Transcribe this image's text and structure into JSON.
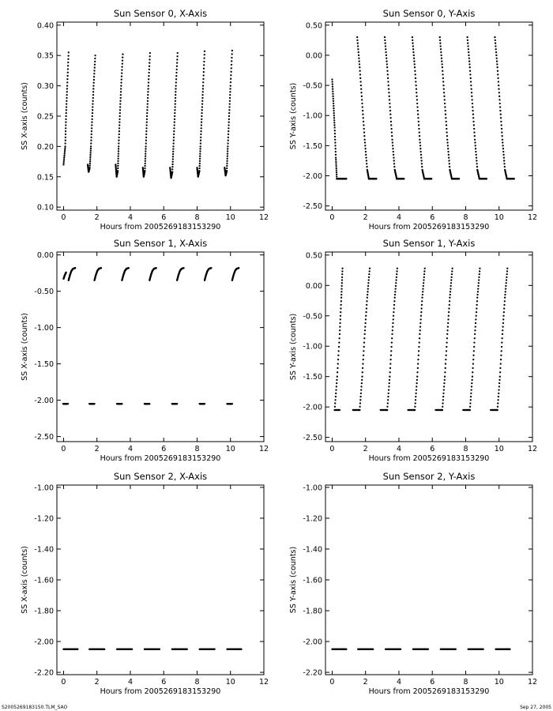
{
  "footer": {
    "file_label": "S2005269183150.TLM_SAO",
    "date_label": "Sep 27, 2005"
  },
  "chart_data": [
    {
      "type": "scatter",
      "title": "Sun Sensor 0, X-Axis",
      "xlabel": "Hours from 2005269183153290",
      "ylabel": "SS X-axis (counts)",
      "xlim": [
        -0.4,
        12
      ],
      "ylim": [
        0.095,
        0.405
      ],
      "xticks": [
        0,
        2,
        4,
        6,
        8,
        10,
        12
      ],
      "yticks": [
        0.1,
        0.15,
        0.2,
        0.25,
        0.3,
        0.35,
        0.4
      ],
      "ytick_labels": [
        "0.10",
        "0.15",
        "0.20",
        "0.25",
        "0.30",
        "0.35",
        "0.40"
      ],
      "segments": [
        {
          "x": [
            0.0,
            0.1,
            0.15,
            0.22,
            0.3
          ],
          "y": [
            0.17,
            0.2,
            0.25,
            0.3,
            0.355
          ]
        },
        {
          "x": [
            1.45,
            1.5,
            1.57,
            1.64,
            1.72,
            1.8,
            1.9
          ],
          "y": [
            0.17,
            0.158,
            0.165,
            0.2,
            0.25,
            0.3,
            0.35
          ]
        },
        {
          "x": [
            3.12,
            3.18,
            3.25,
            3.3,
            3.37,
            3.45,
            3.55
          ],
          "y": [
            0.17,
            0.15,
            0.16,
            0.2,
            0.25,
            0.3,
            0.352
          ]
        },
        {
          "x": [
            4.75,
            4.8,
            4.87,
            4.93,
            5.0,
            5.08,
            5.18
          ],
          "y": [
            0.165,
            0.15,
            0.16,
            0.2,
            0.25,
            0.3,
            0.354
          ]
        },
        {
          "x": [
            6.38,
            6.44,
            6.52,
            6.58,
            6.66,
            6.73,
            6.83
          ],
          "y": [
            0.165,
            0.148,
            0.158,
            0.2,
            0.25,
            0.3,
            0.354
          ]
        },
        {
          "x": [
            8.0,
            8.06,
            8.14,
            8.2,
            8.28,
            8.36,
            8.45
          ],
          "y": [
            0.165,
            0.15,
            0.16,
            0.2,
            0.25,
            0.3,
            0.357
          ]
        },
        {
          "x": [
            9.65,
            9.71,
            9.78,
            9.84,
            9.92,
            10.0,
            10.1
          ],
          "y": [
            0.165,
            0.152,
            0.16,
            0.2,
            0.25,
            0.3,
            0.358
          ]
        }
      ]
    },
    {
      "type": "scatter",
      "title": "Sun Sensor 0, Y-Axis",
      "xlabel": "Hours from 2005269183153290",
      "ylabel": "SS Y-axis (counts)",
      "xlim": [
        -0.4,
        12
      ],
      "ylim": [
        -2.57,
        0.55
      ],
      "xticks": [
        0,
        2,
        4,
        6,
        8,
        10,
        12
      ],
      "yticks": [
        -2.5,
        -2.0,
        -1.5,
        -1.0,
        -0.5,
        0.0,
        0.5
      ],
      "ytick_labels": [
        "-2.50",
        "-2.00",
        "-1.50",
        "-1.00",
        "-0.50",
        "0.00",
        "0.50"
      ],
      "segments": [
        {
          "x": [
            0.0,
            0.08,
            0.15,
            0.22,
            0.28
          ],
          "y": [
            -0.4,
            -0.8,
            -1.2,
            -1.7,
            -2.05
          ]
        },
        {
          "x": [
            0.28,
            0.4,
            0.55,
            0.7,
            0.85
          ],
          "y": [
            -2.05,
            -2.05,
            -2.05,
            -2.05,
            -2.05
          ]
        },
        {
          "x": [
            1.5,
            1.65,
            1.8,
            1.95,
            2.1,
            2.2
          ],
          "y": [
            0.3,
            -0.2,
            -0.8,
            -1.4,
            -1.9,
            -2.05
          ]
        },
        {
          "x": [
            2.2,
            2.35,
            2.5,
            2.65
          ],
          "y": [
            -2.05,
            -2.05,
            -2.05,
            -2.05
          ]
        },
        {
          "x": [
            3.15,
            3.3,
            3.45,
            3.6,
            3.75,
            3.87
          ],
          "y": [
            0.3,
            -0.2,
            -0.8,
            -1.4,
            -1.9,
            -2.05
          ]
        },
        {
          "x": [
            3.87,
            4.0,
            4.15,
            4.3
          ],
          "y": [
            -2.05,
            -2.05,
            -2.05,
            -2.05
          ]
        },
        {
          "x": [
            4.8,
            4.95,
            5.1,
            5.25,
            5.4,
            5.52
          ],
          "y": [
            0.3,
            -0.2,
            -0.8,
            -1.4,
            -1.9,
            -2.05
          ]
        },
        {
          "x": [
            5.52,
            5.65,
            5.8,
            5.95
          ],
          "y": [
            -2.05,
            -2.05,
            -2.05,
            -2.05
          ]
        },
        {
          "x": [
            6.45,
            6.6,
            6.75,
            6.9,
            7.05,
            7.17
          ],
          "y": [
            0.3,
            -0.2,
            -0.8,
            -1.4,
            -1.9,
            -2.05
          ]
        },
        {
          "x": [
            7.17,
            7.3,
            7.45,
            7.6
          ],
          "y": [
            -2.05,
            -2.05,
            -2.05,
            -2.05
          ]
        },
        {
          "x": [
            8.1,
            8.25,
            8.4,
            8.55,
            8.7,
            8.82
          ],
          "y": [
            0.3,
            -0.2,
            -0.8,
            -1.4,
            -1.9,
            -2.05
          ]
        },
        {
          "x": [
            8.82,
            8.95,
            9.1,
            9.25
          ],
          "y": [
            -2.05,
            -2.05,
            -2.05,
            -2.05
          ]
        },
        {
          "x": [
            9.75,
            9.9,
            10.05,
            10.2,
            10.35,
            10.47
          ],
          "y": [
            0.3,
            -0.2,
            -0.8,
            -1.4,
            -1.9,
            -2.05
          ]
        },
        {
          "x": [
            10.47,
            10.6,
            10.75,
            10.9
          ],
          "y": [
            -2.05,
            -2.05,
            -2.05,
            -2.05
          ]
        }
      ]
    },
    {
      "type": "scatter",
      "title": "Sun Sensor 1, X-Axis",
      "xlabel": "Hours from 2005269183153290",
      "ylabel": "SS X-axis (counts)",
      "xlim": [
        -0.4,
        12
      ],
      "ylim": [
        -2.57,
        0.04
      ],
      "xticks": [
        0,
        2,
        4,
        6,
        8,
        10,
        12
      ],
      "yticks": [
        -2.5,
        -2.0,
        -1.5,
        -1.0,
        -0.5,
        0.0
      ],
      "ytick_labels": [
        "-2.50",
        "-2.00",
        "-1.50",
        "-1.00",
        "-0.50",
        "0.00"
      ],
      "segments": [
        {
          "x": [
            0.0,
            0.07,
            0.15
          ],
          "y": [
            -0.33,
            -0.28,
            -0.24
          ]
        },
        {
          "x": [
            0.3,
            0.38,
            0.47,
            0.57,
            0.7
          ],
          "y": [
            -0.35,
            -0.28,
            -0.22,
            -0.19,
            -0.18
          ]
        },
        {
          "x": [
            1.85,
            1.93,
            2.02,
            2.12,
            2.25
          ],
          "y": [
            -0.35,
            -0.28,
            -0.22,
            -0.19,
            -0.18
          ]
        },
        {
          "x": [
            3.5,
            3.58,
            3.67,
            3.77,
            3.9
          ],
          "y": [
            -0.35,
            -0.28,
            -0.22,
            -0.19,
            -0.18
          ]
        },
        {
          "x": [
            5.15,
            5.23,
            5.32,
            5.42,
            5.55
          ],
          "y": [
            -0.35,
            -0.28,
            -0.22,
            -0.19,
            -0.18
          ]
        },
        {
          "x": [
            6.8,
            6.88,
            6.97,
            7.07,
            7.2
          ],
          "y": [
            -0.35,
            -0.28,
            -0.22,
            -0.19,
            -0.18
          ]
        },
        {
          "x": [
            8.45,
            8.53,
            8.62,
            8.72,
            8.85
          ],
          "y": [
            -0.35,
            -0.28,
            -0.22,
            -0.19,
            -0.18
          ]
        },
        {
          "x": [
            10.1,
            10.18,
            10.27,
            10.37,
            10.5
          ],
          "y": [
            -0.35,
            -0.28,
            -0.22,
            -0.19,
            -0.18
          ]
        },
        {
          "x": [
            -0.02,
            0.12,
            0.26
          ],
          "y": [
            -2.05,
            -2.05,
            -2.05
          ]
        },
        {
          "x": [
            1.55,
            1.7,
            1.85
          ],
          "y": [
            -2.05,
            -2.05,
            -2.05
          ]
        },
        {
          "x": [
            3.2,
            3.35,
            3.5
          ],
          "y": [
            -2.05,
            -2.05,
            -2.05
          ]
        },
        {
          "x": [
            4.85,
            5.0,
            5.15
          ],
          "y": [
            -2.05,
            -2.05,
            -2.05
          ]
        },
        {
          "x": [
            6.5,
            6.65,
            6.8
          ],
          "y": [
            -2.05,
            -2.05,
            -2.05
          ]
        },
        {
          "x": [
            8.15,
            8.3,
            8.45
          ],
          "y": [
            -2.05,
            -2.05,
            -2.05
          ]
        },
        {
          "x": [
            9.8,
            9.95,
            10.1
          ],
          "y": [
            -2.05,
            -2.05,
            -2.05
          ]
        }
      ]
    },
    {
      "type": "scatter",
      "title": "Sun Sensor 1, Y-Axis",
      "xlabel": "Hours from 2005269183153290",
      "ylabel": "SS Y-axis (counts)",
      "xlim": [
        -0.4,
        12
      ],
      "ylim": [
        -2.57,
        0.55
      ],
      "xticks": [
        0,
        2,
        4,
        6,
        8,
        10,
        12
      ],
      "yticks": [
        -2.5,
        -2.0,
        -1.5,
        -1.0,
        -0.5,
        0.0,
        0.5
      ],
      "ytick_labels": [
        "-2.50",
        "-2.00",
        "-1.50",
        "-1.00",
        "-0.50",
        "0.00",
        "0.50"
      ],
      "segments": [
        {
          "x": [
            0.15,
            0.3,
            0.45,
            0.55,
            0.62
          ],
          "y": [
            -2.05,
            -1.5,
            -0.8,
            -0.2,
            0.28
          ]
        },
        {
          "x": [
            0.15,
            0.3,
            0.45
          ],
          "y": [
            -2.05,
            -2.05,
            -2.05
          ]
        },
        {
          "x": [
            1.65,
            1.8,
            1.95,
            2.1,
            2.25
          ],
          "y": [
            -2.05,
            -1.5,
            -0.8,
            -0.2,
            0.28
          ]
        },
        {
          "x": [
            1.25,
            1.4,
            1.55,
            1.65
          ],
          "y": [
            -2.05,
            -2.05,
            -2.05,
            -2.05
          ]
        },
        {
          "x": [
            3.3,
            3.45,
            3.6,
            3.75,
            3.9
          ],
          "y": [
            -2.05,
            -1.5,
            -0.8,
            -0.2,
            0.28
          ]
        },
        {
          "x": [
            2.9,
            3.05,
            3.2,
            3.3
          ],
          "y": [
            -2.05,
            -2.05,
            -2.05,
            -2.05
          ]
        },
        {
          "x": [
            4.95,
            5.1,
            5.25,
            5.4,
            5.55
          ],
          "y": [
            -2.05,
            -1.5,
            -0.8,
            -0.2,
            0.28
          ]
        },
        {
          "x": [
            4.55,
            4.7,
            4.85,
            4.95
          ],
          "y": [
            -2.05,
            -2.05,
            -2.05,
            -2.05
          ]
        },
        {
          "x": [
            6.6,
            6.75,
            6.9,
            7.05,
            7.2
          ],
          "y": [
            -2.05,
            -1.5,
            -0.8,
            -0.2,
            0.28
          ]
        },
        {
          "x": [
            6.2,
            6.35,
            6.5,
            6.6
          ],
          "y": [
            -2.05,
            -2.05,
            -2.05,
            -2.05
          ]
        },
        {
          "x": [
            8.25,
            8.4,
            8.55,
            8.7,
            8.85
          ],
          "y": [
            -2.05,
            -1.5,
            -0.8,
            -0.2,
            0.28
          ]
        },
        {
          "x": [
            7.85,
            8.0,
            8.15,
            8.25
          ],
          "y": [
            -2.05,
            -2.05,
            -2.05,
            -2.05
          ]
        },
        {
          "x": [
            9.9,
            10.05,
            10.2,
            10.35,
            10.5
          ],
          "y": [
            -2.05,
            -1.5,
            -0.8,
            -0.2,
            0.28
          ]
        },
        {
          "x": [
            9.5,
            9.65,
            9.8,
            9.9
          ],
          "y": [
            -2.05,
            -2.05,
            -2.05,
            -2.05
          ]
        }
      ]
    },
    {
      "type": "scatter",
      "title": "Sun Sensor 2, X-Axis",
      "xlabel": "Hours from 2005269183153290",
      "ylabel": "SS X-axis (counts)",
      "xlim": [
        -0.4,
        12
      ],
      "ylim": [
        -2.215,
        -0.985
      ],
      "xticks": [
        0,
        2,
        4,
        6,
        8,
        10,
        12
      ],
      "yticks": [
        -2.2,
        -2.0,
        -1.8,
        -1.6,
        -1.4,
        -1.2,
        -1.0
      ],
      "ytick_labels": [
        "-2.20",
        "-2.00",
        "-1.80",
        "-1.60",
        "-1.40",
        "-1.20",
        "-1.00"
      ],
      "segments": [
        {
          "x": [
            0.0,
            0.3,
            0.6,
            0.85
          ],
          "y": [
            -2.05,
            -2.05,
            -2.05,
            -2.05
          ]
        },
        {
          "x": [
            1.55,
            1.85,
            2.15,
            2.45
          ],
          "y": [
            -2.05,
            -2.05,
            -2.05,
            -2.05
          ]
        },
        {
          "x": [
            3.2,
            3.5,
            3.8,
            4.1
          ],
          "y": [
            -2.05,
            -2.05,
            -2.05,
            -2.05
          ]
        },
        {
          "x": [
            4.85,
            5.15,
            5.45,
            5.75
          ],
          "y": [
            -2.05,
            -2.05,
            -2.05,
            -2.05
          ]
        },
        {
          "x": [
            6.5,
            6.8,
            7.1,
            7.4
          ],
          "y": [
            -2.05,
            -2.05,
            -2.05,
            -2.05
          ]
        },
        {
          "x": [
            8.15,
            8.45,
            8.75,
            9.05
          ],
          "y": [
            -2.05,
            -2.05,
            -2.05,
            -2.05
          ]
        },
        {
          "x": [
            9.8,
            10.1,
            10.4,
            10.65
          ],
          "y": [
            -2.05,
            -2.05,
            -2.05,
            -2.05
          ]
        }
      ]
    },
    {
      "type": "scatter",
      "title": "Sun Sensor 2, Y-Axis",
      "xlabel": "Hours from 2005269183153290",
      "ylabel": "SS Y-axis (counts)",
      "xlim": [
        -0.4,
        12
      ],
      "ylim": [
        -2.215,
        -0.985
      ],
      "xticks": [
        0,
        2,
        4,
        6,
        8,
        10,
        12
      ],
      "yticks": [
        -2.2,
        -2.0,
        -1.8,
        -1.6,
        -1.4,
        -1.2,
        -1.0
      ],
      "ytick_labels": [
        "-2.20",
        "-2.00",
        "-1.80",
        "-1.60",
        "-1.40",
        "-1.20",
        "-1.00"
      ],
      "segments": [
        {
          "x": [
            0.0,
            0.3,
            0.6,
            0.85
          ],
          "y": [
            -2.05,
            -2.05,
            -2.05,
            -2.05
          ]
        },
        {
          "x": [
            1.55,
            1.85,
            2.15,
            2.45
          ],
          "y": [
            -2.05,
            -2.05,
            -2.05,
            -2.05
          ]
        },
        {
          "x": [
            3.2,
            3.5,
            3.8,
            4.1
          ],
          "y": [
            -2.05,
            -2.05,
            -2.05,
            -2.05
          ]
        },
        {
          "x": [
            4.85,
            5.15,
            5.45,
            5.75
          ],
          "y": [
            -2.05,
            -2.05,
            -2.05,
            -2.05
          ]
        },
        {
          "x": [
            6.5,
            6.8,
            7.1,
            7.4
          ],
          "y": [
            -2.05,
            -2.05,
            -2.05,
            -2.05
          ]
        },
        {
          "x": [
            8.15,
            8.45,
            8.75,
            9.05
          ],
          "y": [
            -2.05,
            -2.05,
            -2.05,
            -2.05
          ]
        },
        {
          "x": [
            9.8,
            10.1,
            10.4,
            10.65
          ],
          "y": [
            -2.05,
            -2.05,
            -2.05,
            -2.05
          ]
        }
      ]
    }
  ]
}
